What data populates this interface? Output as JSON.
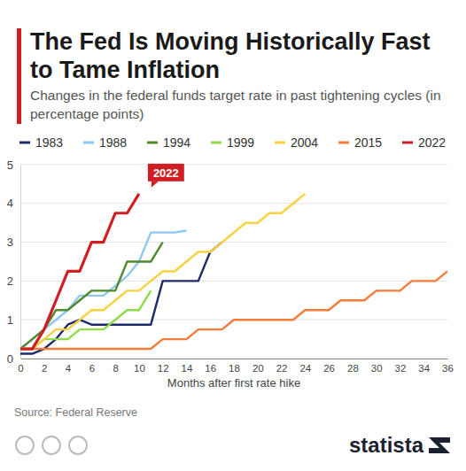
{
  "chart_data": {
    "type": "line",
    "title": "The Fed Is Moving Historically Fast to Tame Inflation",
    "subtitle": "Changes in the federal funds target rate in past tightening cycles (in percentage points)",
    "x_label": "Months after first rate hike",
    "source": "Source: Federal Reserve",
    "logo": "statista",
    "annotation": "2022",
    "x": [
      0,
      1,
      2,
      3,
      4,
      5,
      6,
      7,
      8,
      9,
      10,
      11,
      12,
      13,
      14,
      15,
      16,
      17,
      18,
      19,
      20,
      21,
      22,
      23,
      24,
      25,
      26,
      27,
      28,
      29,
      30,
      31,
      32,
      33,
      34,
      35,
      36
    ],
    "xlim": [
      0,
      36
    ],
    "xticks": [
      0,
      2,
      4,
      6,
      8,
      10,
      12,
      14,
      16,
      18,
      20,
      22,
      24,
      26,
      28,
      30,
      32,
      34,
      36
    ],
    "ylim": [
      0,
      5
    ],
    "yticks": [
      0,
      1,
      2,
      3,
      4,
      5
    ],
    "grid": true,
    "legend": "top",
    "series": [
      {
        "name": "1983",
        "color": "#1f2a6b",
        "values": [
          0.125,
          0.125,
          0.25,
          0.5,
          0.875,
          1.0,
          0.875,
          0.875,
          0.875,
          0.875,
          0.875,
          0.875,
          2.0,
          2.0,
          2.0,
          2.0,
          2.75,
          3.0,
          null,
          null,
          null,
          null,
          null,
          null,
          null,
          null,
          null,
          null,
          null,
          null,
          null,
          null,
          null,
          null,
          null,
          null,
          null
        ]
      },
      {
        "name": "1988",
        "color": "#8ec8f2",
        "values": [
          0.25,
          0.5,
          0.75,
          1.0,
          1.25,
          1.625,
          1.625,
          1.625,
          1.875,
          2.125,
          2.5,
          3.25,
          3.25,
          3.25,
          3.3,
          null,
          null,
          null,
          null,
          null,
          null,
          null,
          null,
          null,
          null,
          null,
          null,
          null,
          null,
          null,
          null,
          null,
          null,
          null,
          null,
          null,
          null
        ]
      },
      {
        "name": "1994",
        "color": "#4f8a2b",
        "values": [
          0.25,
          0.5,
          0.75,
          1.25,
          1.25,
          1.5,
          1.75,
          1.75,
          1.75,
          2.5,
          2.5,
          2.5,
          3.0,
          null,
          null,
          null,
          null,
          null,
          null,
          null,
          null,
          null,
          null,
          null,
          null,
          null,
          null,
          null,
          null,
          null,
          null,
          null,
          null,
          null,
          null,
          null,
          null
        ]
      },
      {
        "name": "1999",
        "color": "#8fdc48",
        "values": [
          0.25,
          0.25,
          0.5,
          0.5,
          0.5,
          0.75,
          0.75,
          0.75,
          1.0,
          1.25,
          1.25,
          1.75,
          null,
          null,
          null,
          null,
          null,
          null,
          null,
          null,
          null,
          null,
          null,
          null,
          null,
          null,
          null,
          null,
          null,
          null,
          null,
          null,
          null,
          null,
          null,
          null,
          null
        ]
      },
      {
        "name": "2004",
        "color": "#f7d23e",
        "values": [
          0.25,
          0.25,
          0.5,
          0.75,
          0.75,
          1.0,
          1.25,
          1.25,
          1.5,
          1.75,
          1.75,
          2.0,
          2.25,
          2.25,
          2.5,
          2.75,
          2.75,
          3.0,
          3.25,
          3.5,
          3.5,
          3.75,
          3.75,
          4.0,
          4.25,
          null,
          null,
          null,
          null,
          null,
          null,
          null,
          null,
          null,
          null,
          null,
          null
        ]
      },
      {
        "name": "2015",
        "color": "#f47b3a",
        "values": [
          0.25,
          0.25,
          0.25,
          0.25,
          0.25,
          0.25,
          0.25,
          0.25,
          0.25,
          0.25,
          0.25,
          0.25,
          0.5,
          0.5,
          0.5,
          0.75,
          0.75,
          0.75,
          1.0,
          1.0,
          1.0,
          1.0,
          1.0,
          1.0,
          1.25,
          1.25,
          1.25,
          1.5,
          1.5,
          1.5,
          1.75,
          1.75,
          1.75,
          2.0,
          2.0,
          2.0,
          2.25
        ]
      },
      {
        "name": "2022",
        "color": "#cf1f25",
        "values": [
          0.25,
          0.25,
          0.75,
          1.5,
          2.25,
          2.25,
          3.0,
          3.0,
          3.75,
          3.75,
          4.25,
          null,
          null,
          null,
          null,
          null,
          null,
          null,
          null,
          null,
          null,
          null,
          null,
          null,
          null,
          null,
          null,
          null,
          null,
          null,
          null,
          null,
          null,
          null,
          null,
          null,
          null
        ]
      }
    ]
  }
}
